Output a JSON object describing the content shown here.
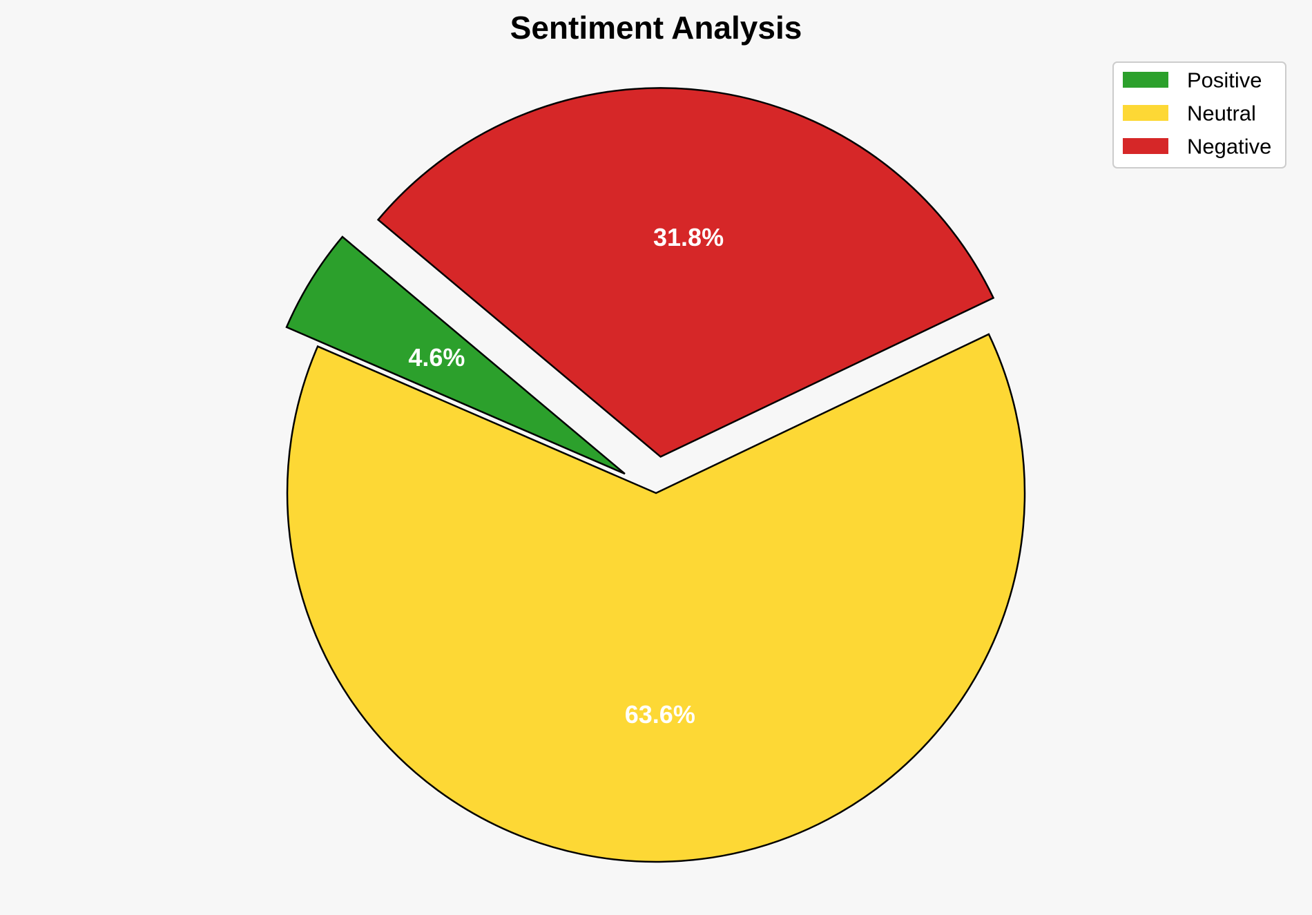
{
  "chart_data": {
    "type": "pie",
    "title": "Sentiment Analysis",
    "categories": [
      "Positive",
      "Neutral",
      "Negative"
    ],
    "values": [
      4.6,
      63.6,
      31.8
    ],
    "labels": [
      "4.6%",
      "63.6%",
      "31.8%"
    ],
    "colors": [
      "#2ca02c",
      "#fdd835",
      "#d62728"
    ],
    "exploded": [
      true,
      false,
      true
    ],
    "start_angle_deg": 140,
    "direction": "counterclockwise",
    "legend": {
      "placement": "top-right",
      "entries": [
        "Positive",
        "Neutral",
        "Negative"
      ]
    }
  }
}
